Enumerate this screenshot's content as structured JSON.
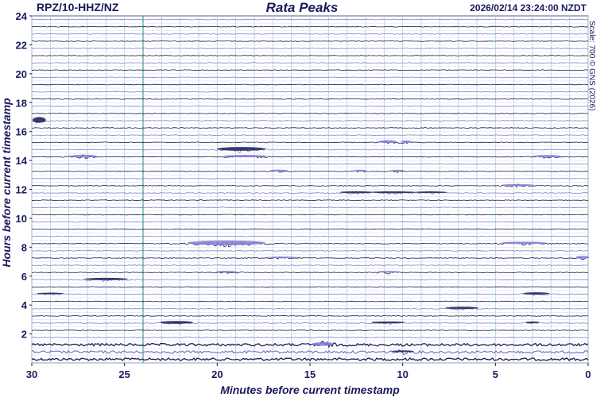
{
  "header": {
    "station": "RPZ/10-HHZ/NZ",
    "title": "Rata Peaks",
    "timestamp": "2026/02/14 23:24:00 NZDT",
    "scale_note": "Scale: 700 © GNS (2026)"
  },
  "chart_data": {
    "type": "line",
    "title": "Rata Peaks",
    "xlabel": "Minutes before current timestamp",
    "ylabel": "Hours before current timestamp",
    "xlim": [
      30,
      0
    ],
    "ylim": [
      0,
      24
    ],
    "x_ticks": [
      "30",
      "25",
      "20",
      "15",
      "10",
      "5",
      "0"
    ],
    "y_ticks": [
      "2",
      "4",
      "6",
      "8",
      "10",
      "12",
      "14",
      "16",
      "18",
      "20",
      "22",
      "24"
    ],
    "x_tick_values": [
      30,
      25,
      20,
      15,
      10,
      5,
      0
    ],
    "y_tick_values": [
      2,
      4,
      6,
      8,
      10,
      12,
      14,
      16,
      18,
      20,
      22,
      24
    ],
    "grid": true,
    "highlight_minute": 24,
    "trace_rows_per_hour": 2,
    "trace_colors": [
      "#1a1a5e",
      "#8a7ad8"
    ],
    "events": [
      {
        "hour": 16.8,
        "minute": 29.6,
        "amp": 6,
        "dur": 0.6
      },
      {
        "hour": 14.3,
        "minute": 27.2,
        "amp": 3,
        "dur": 1.2
      },
      {
        "hour": 14.8,
        "minute": 18.7,
        "amp": 4,
        "dur": 2.2
      },
      {
        "hour": 14.3,
        "minute": 18.5,
        "amp": 2.5,
        "dur": 2.0
      },
      {
        "hour": 15.3,
        "minute": 10.8,
        "amp": 3,
        "dur": 0.8
      },
      {
        "hour": 15.3,
        "minute": 9.8,
        "amp": 2.5,
        "dur": 0.5
      },
      {
        "hour": 14.3,
        "minute": 2.2,
        "amp": 2.5,
        "dur": 1.2
      },
      {
        "hour": 13.3,
        "minute": 16.7,
        "amp": 2,
        "dur": 0.8
      },
      {
        "hour": 13.3,
        "minute": 12.3,
        "amp": 1.8,
        "dur": 0.6
      },
      {
        "hour": 13.3,
        "minute": 10.3,
        "amp": 1.8,
        "dur": 0.6
      },
      {
        "hour": 12.3,
        "minute": 3.8,
        "amp": 2,
        "dur": 1.5
      },
      {
        "hour": 11.8,
        "minute": 12.5,
        "amp": 2,
        "dur": 1.5
      },
      {
        "hour": 11.8,
        "minute": 10.5,
        "amp": 2,
        "dur": 2.0
      },
      {
        "hour": 11.8,
        "minute": 8.5,
        "amp": 1.8,
        "dur": 1.5
      },
      {
        "hour": 8.3,
        "minute": 19.5,
        "amp": 5,
        "dur": 3.5
      },
      {
        "hour": 8.3,
        "minute": 3.5,
        "amp": 2.5,
        "dur": 2.0
      },
      {
        "hour": 7.3,
        "minute": 16.5,
        "amp": 1.5,
        "dur": 1.5
      },
      {
        "hour": 7.3,
        "minute": 0.3,
        "amp": 3,
        "dur": 0.6
      },
      {
        "hour": 6.3,
        "minute": 19.5,
        "amp": 2,
        "dur": 1.0
      },
      {
        "hour": 6.3,
        "minute": 10.8,
        "amp": 1.8,
        "dur": 1.0
      },
      {
        "hour": 5.8,
        "minute": 26.0,
        "amp": 2.5,
        "dur": 2.0
      },
      {
        "hour": 4.8,
        "minute": 29.0,
        "amp": 1.8,
        "dur": 1.2
      },
      {
        "hour": 4.8,
        "minute": 2.8,
        "amp": 2.5,
        "dur": 1.2
      },
      {
        "hour": 3.8,
        "minute": 6.8,
        "amp": 2.5,
        "dur": 1.5
      },
      {
        "hour": 2.8,
        "minute": 22.2,
        "amp": 3,
        "dur": 1.5
      },
      {
        "hour": 2.8,
        "minute": 10.8,
        "amp": 2,
        "dur": 1.5
      },
      {
        "hour": 2.8,
        "minute": 3.0,
        "amp": 2,
        "dur": 0.6
      },
      {
        "hour": 1.3,
        "minute": 14.3,
        "amp": 4,
        "dur": 1.0
      },
      {
        "hour": 0.8,
        "minute": 10.0,
        "amp": 2,
        "dur": 1.0
      }
    ]
  }
}
